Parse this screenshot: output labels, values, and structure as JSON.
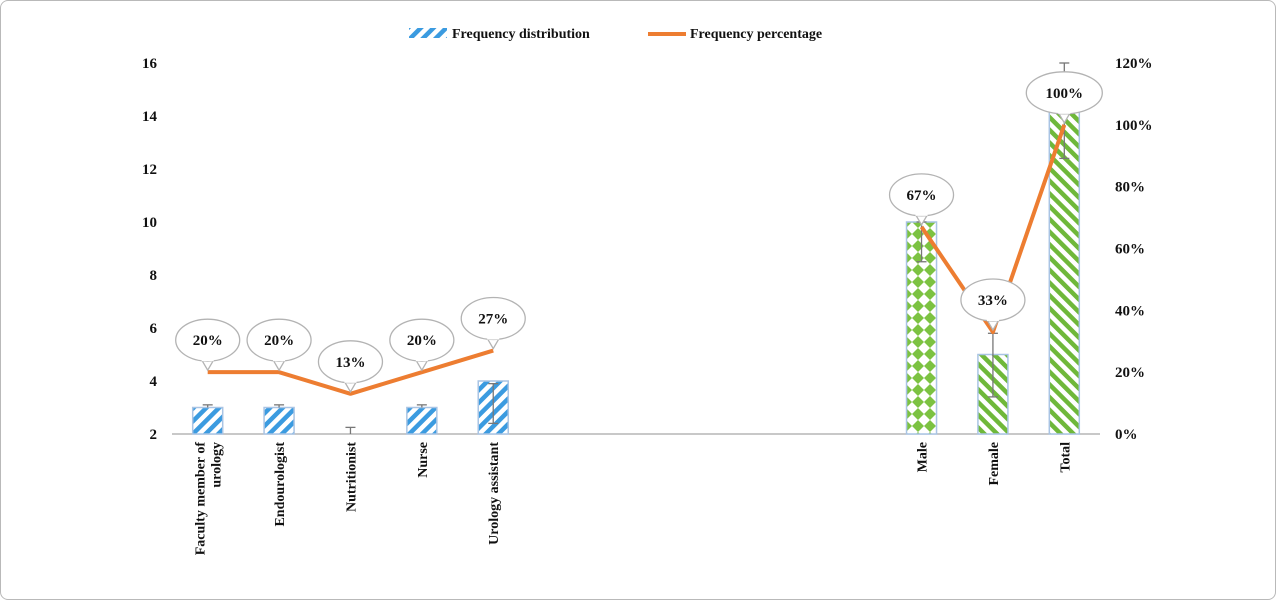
{
  "chart_data": {
    "type": "bar",
    "categories": [
      "Faculty member of urology",
      "Endourologist",
      "Nutritionist",
      "Nurse",
      "Urology assistant",
      "",
      "",
      "",
      "",
      "",
      "Male",
      "Female",
      "Total"
    ],
    "category_lines": [
      [
        "Faculty member of",
        "urology"
      ],
      [
        "Endourologist"
      ],
      [
        "Nutritionist"
      ],
      [
        "Nurse"
      ],
      [
        "Urology assistant"
      ],
      [],
      [],
      [],
      [],
      [],
      [
        "Male"
      ],
      [
        "Female"
      ],
      [
        "Total"
      ]
    ],
    "series": [
      {
        "name": "Frequency distribution",
        "type": "bar",
        "axis": "left",
        "values": [
          3,
          3,
          2,
          3,
          4,
          null,
          null,
          null,
          null,
          null,
          10,
          5,
          15
        ],
        "patterns": [
          "blue-stripe",
          "blue-stripe",
          "blue-stripe",
          "blue-stripe",
          "blue-stripe",
          null,
          null,
          null,
          null,
          null,
          "green-diamond",
          "green-stripe",
          "green-stripe"
        ],
        "error_low": [
          null,
          null,
          null,
          null,
          2.4,
          null,
          null,
          null,
          null,
          null,
          8.5,
          3.4,
          12.4
        ],
        "error_high": [
          3.1,
          3.1,
          2.25,
          3.1,
          3.9,
          null,
          null,
          null,
          null,
          null,
          10,
          5.8,
          16
        ]
      },
      {
        "name": "Frequency percentage",
        "type": "line",
        "axis": "right",
        "values": [
          20,
          20,
          13,
          20,
          27,
          null,
          null,
          null,
          null,
          null,
          67,
          33,
          100
        ],
        "labels": [
          "20%",
          "20%",
          "13%",
          "20%",
          "27%",
          "",
          "",
          "",
          "",
          "",
          "67%",
          "33%",
          "100%"
        ]
      }
    ],
    "y_left": {
      "min": 2,
      "max": 16,
      "ticks": [
        "2",
        "4",
        "6",
        "8",
        "10",
        "12",
        "14",
        "16"
      ]
    },
    "y_right": {
      "min": 0,
      "max": 120,
      "ticks": [
        "0%",
        "20%",
        "40%",
        "60%",
        "80%",
        "100%",
        "120%"
      ]
    },
    "grid": false,
    "legend_position": "top",
    "colors": {
      "blue": "#3b9be0",
      "green": "#7cc242",
      "line": "#ed7d31",
      "bar_border": "#a9c4e4"
    }
  }
}
